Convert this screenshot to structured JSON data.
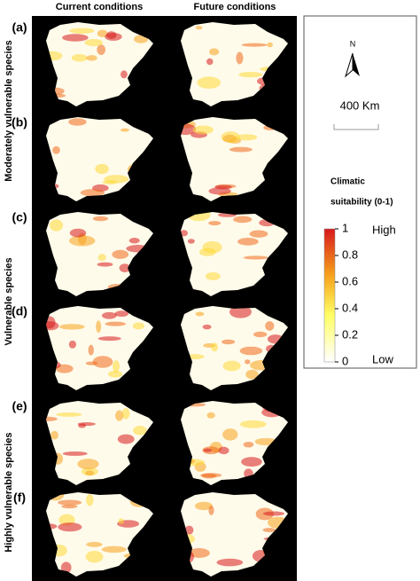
{
  "header": {
    "columns": [
      "Current conditions",
      "Future conditions"
    ]
  },
  "row_groups": [
    "Moderately vulnerable species",
    "Vulnerable species",
    "Highly vulnerable species"
  ],
  "panels": [
    "(a)",
    "(b)",
    "(c)",
    "(d)",
    "(e)",
    "(f)"
  ],
  "legend": {
    "north_label": "N",
    "scale_label": "400 Km",
    "title_lines": [
      "Climatic",
      "suitability  (0-1)"
    ],
    "colorbar_range": [
      0,
      1
    ],
    "ticks": [
      1,
      0.8,
      0.6,
      0.4,
      0.2,
      0
    ],
    "high": "High",
    "low": "Low"
  }
}
